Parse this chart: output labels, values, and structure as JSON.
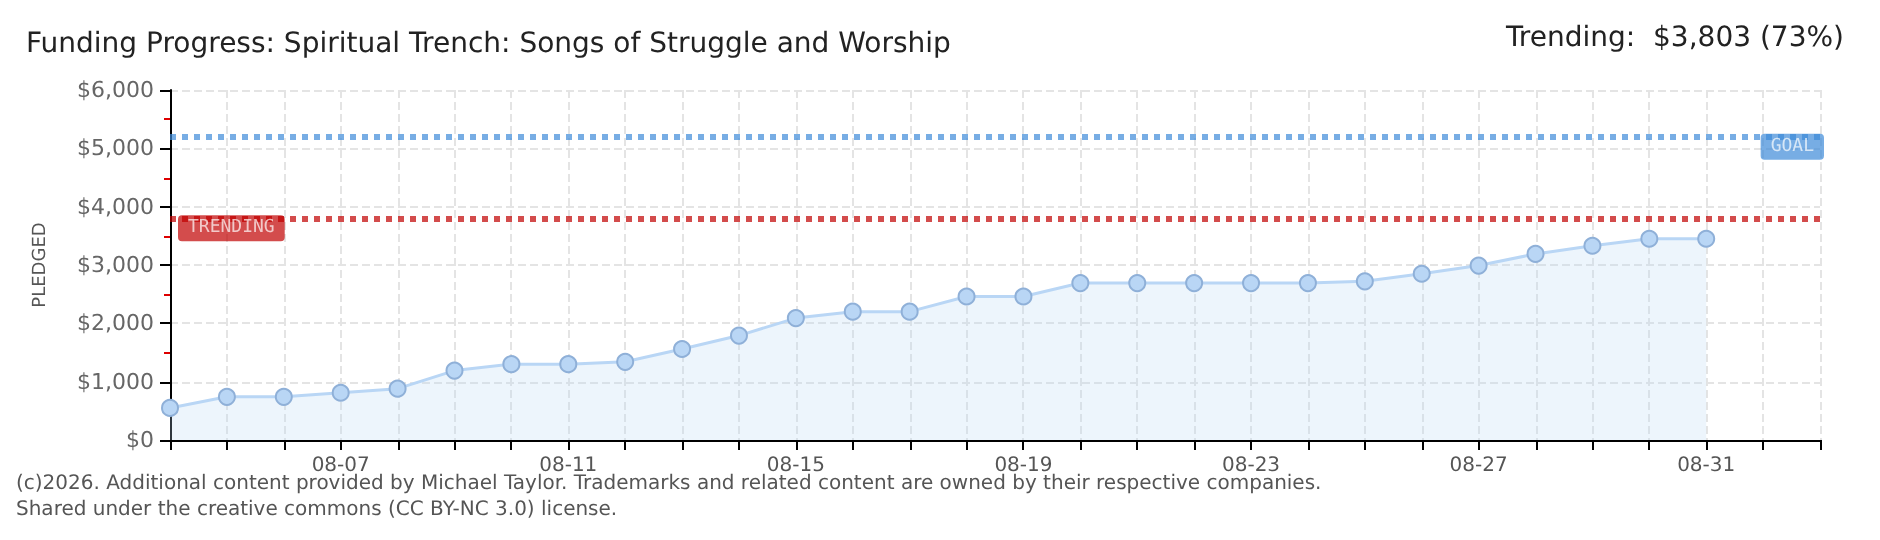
{
  "chart_data": {
    "type": "area",
    "title": "Funding Progress: Spiritual Trench: Songs of Struggle and Worship",
    "subtitle": "Trending:  $3,803 (73%)",
    "ylabel": "PLEDGED",
    "categories": [
      null,
      null,
      null,
      "08-07",
      null,
      null,
      null,
      "08-11",
      null,
      null,
      null,
      "08-15",
      null,
      null,
      null,
      "08-19",
      null,
      null,
      null,
      "08-23",
      null,
      null,
      null,
      "08-27",
      null,
      null,
      null,
      "08-31",
      null,
      null
    ],
    "series": [
      {
        "color": "#b9d6f5",
        "values": [
          550,
          740,
          740,
          810,
          880,
          1190,
          1300,
          1300,
          1340,
          1560,
          1790,
          2090,
          2200,
          2200,
          2460,
          2460,
          2690,
          2690,
          2690,
          2690,
          2690,
          2720,
          2850,
          2990,
          3190,
          3330,
          3450,
          3450,
          null,
          null
        ]
      }
    ],
    "ylim": [
      0,
      6000
    ],
    "yticks": [
      {
        "value": 0,
        "label": "$0"
      },
      {
        "value": 1000,
        "label": "$1,000"
      },
      {
        "value": 2000,
        "label": "$2,000"
      },
      {
        "value": 3000,
        "label": "$3,000"
      },
      {
        "value": 4000,
        "label": "$4,000"
      },
      {
        "value": 5000,
        "label": "$5,000"
      },
      {
        "value": 6000,
        "label": "$6,000"
      }
    ],
    "ref_lines": [
      {
        "axis": "y",
        "value": 5200,
        "label": "GOAL",
        "color": "#3d8ad9",
        "line_style": "dotted"
      },
      {
        "axis": "y",
        "value": 3803,
        "label": "TRENDING",
        "color": "#c00000",
        "line_style": "dotted"
      }
    ],
    "annotations": [
      "(c)2026. Additional content provided by Michael Taylor. Trademarks and related content are owned by their respective companies.",
      "Shared under the creative commons (CC BY-NC 3.0) license."
    ],
    "grid": true,
    "marker": "circle",
    "line_style": "solid"
  }
}
